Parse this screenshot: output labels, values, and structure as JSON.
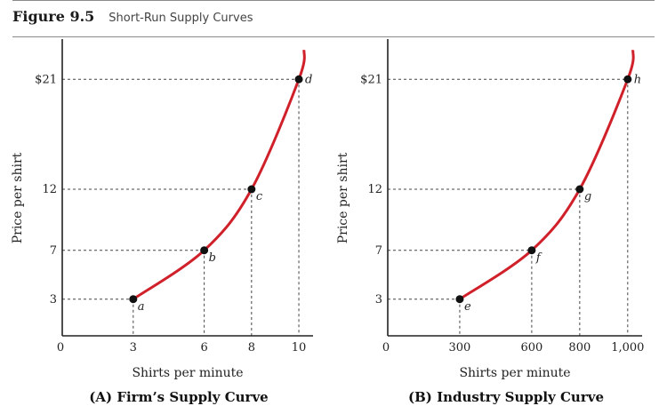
{
  "header": {
    "figure_label": "Figure 9.5",
    "figure_title": "Short-Run Supply Curves"
  },
  "colors": {
    "curve": "#d0202a",
    "point": "#111111",
    "axis": "#222222",
    "guide": "#444444"
  },
  "chart_data": [
    {
      "type": "line",
      "title": "(A) Firm’s Supply Curve",
      "xlabel": "Shirts per minute",
      "ylabel": "Price per shirt",
      "xlim": [
        0,
        10.6
      ],
      "ylim": [
        0,
        24
      ],
      "x_ticks": [
        "0",
        "3",
        "6",
        "8",
        "10"
      ],
      "y_ticks": [
        "3",
        "7",
        "12",
        "$21"
      ],
      "points": [
        {
          "label": "a",
          "x": 3,
          "y": 3
        },
        {
          "label": "b",
          "x": 6,
          "y": 7
        },
        {
          "label": "c",
          "x": 8,
          "y": 12
        },
        {
          "label": "d",
          "x": 10,
          "y": 21
        }
      ]
    },
    {
      "type": "line",
      "title": "(B) Industry Supply Curve",
      "xlabel": "Shirts per minute",
      "ylabel": "Price per shirt",
      "xlim": [
        0,
        1060
      ],
      "ylim": [
        0,
        24
      ],
      "x_ticks": [
        "0",
        "300",
        "600",
        "800",
        "1,000"
      ],
      "y_ticks": [
        "3",
        "7",
        "12",
        "$21"
      ],
      "points": [
        {
          "label": "e",
          "x": 300,
          "y": 3
        },
        {
          "label": "f",
          "x": 600,
          "y": 7
        },
        {
          "label": "g",
          "x": 800,
          "y": 12
        },
        {
          "label": "h",
          "x": 1000,
          "y": 21
        }
      ]
    }
  ]
}
